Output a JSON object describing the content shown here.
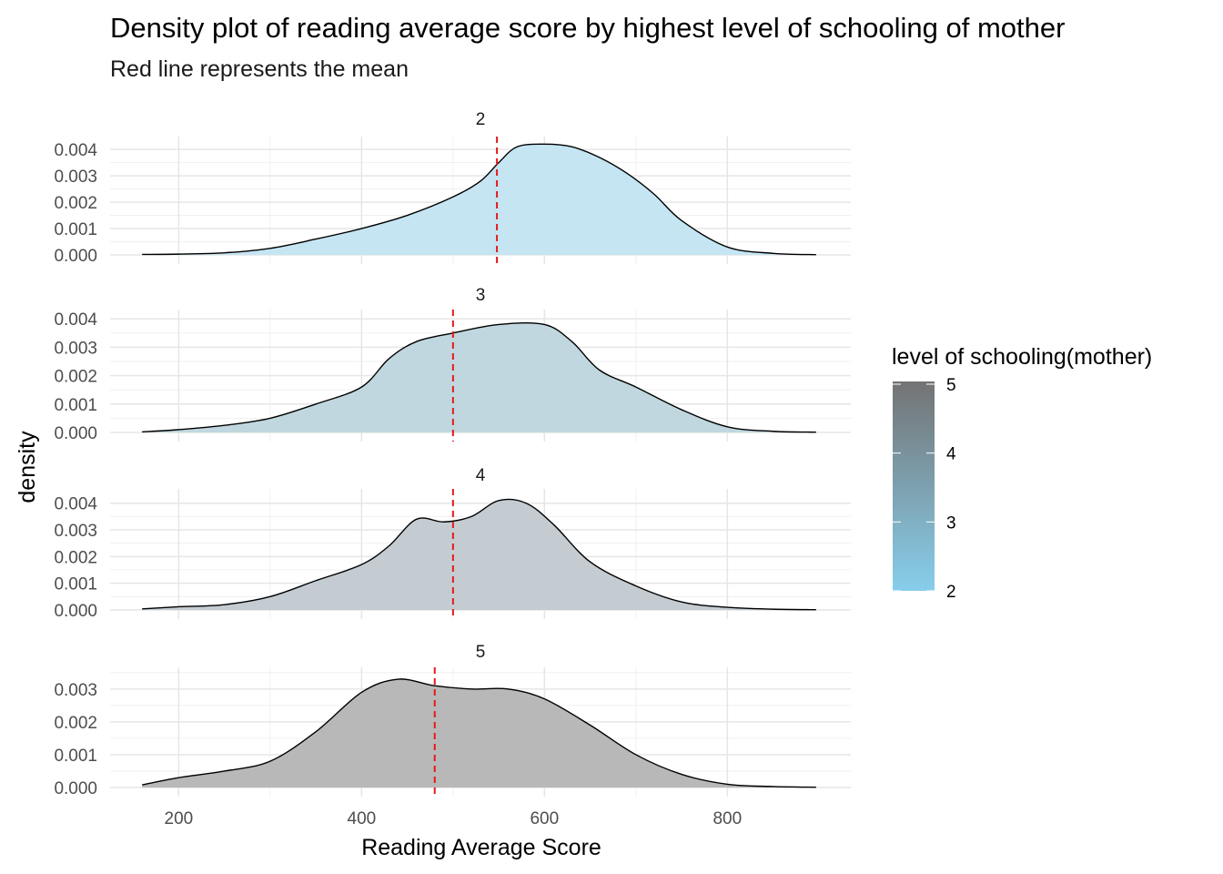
{
  "chart_data": {
    "type": "area",
    "title": "Density plot of reading average score by highest level of schooling of mother",
    "subtitle": "Red line represents the mean",
    "xlabel": "Reading Average Score",
    "ylabel": "density",
    "xlim": [
      125,
      935
    ],
    "x_ticks": [
      "200",
      "400",
      "600",
      "800"
    ],
    "x_tick_values": [
      200,
      400,
      600,
      800
    ],
    "grid": true,
    "mean_line_color": "#e41a1c",
    "legend": {
      "title": "level of schooling(mother)",
      "position": "right",
      "labels": [
        "5",
        "4",
        "3",
        "2"
      ],
      "values": [
        5,
        4,
        3,
        2
      ],
      "colors": [
        "#737373",
        "#87ceeb"
      ]
    },
    "facets": [
      {
        "label": "2",
        "fill": "#c5e5f3",
        "mean": 548,
        "ylim": [
          0,
          0.00435
        ],
        "y_ticks": [
          "0.000",
          "0.001",
          "0.002",
          "0.003",
          "0.004"
        ],
        "y_tick_values": [
          0,
          0.001,
          0.002,
          0.003,
          0.004
        ],
        "x": [
          160,
          200,
          250,
          300,
          350,
          400,
          450,
          500,
          530,
          550,
          570,
          600,
          630,
          660,
          690,
          720,
          750,
          800,
          850,
          897
        ],
        "y": [
          2e-05,
          3e-05,
          8e-05,
          0.00025,
          0.0006,
          0.001,
          0.0015,
          0.0022,
          0.0028,
          0.0035,
          0.0041,
          0.0042,
          0.0041,
          0.0037,
          0.0031,
          0.0023,
          0.0013,
          0.0003,
          6e-05,
          1e-05
        ]
      },
      {
        "label": "3",
        "fill": "#c0d7df",
        "mean": 500,
        "ylim": [
          0,
          0.0042
        ],
        "y_ticks": [
          "0.000",
          "0.001",
          "0.002",
          "0.003",
          "0.004"
        ],
        "y_tick_values": [
          0,
          0.001,
          0.002,
          0.003,
          0.004
        ],
        "x": [
          160,
          200,
          250,
          300,
          350,
          400,
          430,
          460,
          500,
          550,
          600,
          630,
          660,
          700,
          750,
          800,
          850,
          897
        ],
        "y": [
          2e-05,
          0.0001,
          0.00025,
          0.0005,
          0.001,
          0.0016,
          0.0026,
          0.0032,
          0.0035,
          0.0038,
          0.0038,
          0.0032,
          0.0022,
          0.0016,
          0.0008,
          0.0002,
          4e-05,
          1e-05
        ]
      },
      {
        "label": "4",
        "fill": "#c4ccd2",
        "mean": 500,
        "ylim": [
          0,
          0.0044
        ],
        "y_ticks": [
          "0.000",
          "0.001",
          "0.002",
          "0.003",
          "0.004"
        ],
        "y_tick_values": [
          0,
          0.001,
          0.002,
          0.003,
          0.004
        ],
        "x": [
          160,
          200,
          250,
          300,
          350,
          400,
          430,
          460,
          490,
          520,
          550,
          580,
          610,
          650,
          700,
          750,
          800,
          850,
          897
        ],
        "y": [
          4e-05,
          0.00012,
          0.0002,
          0.0005,
          0.0011,
          0.0017,
          0.0024,
          0.0034,
          0.0033,
          0.0035,
          0.0041,
          0.004,
          0.0032,
          0.0018,
          0.0009,
          0.0003,
          0.0001,
          3e-05,
          1e-05
        ]
      },
      {
        "label": "5",
        "fill": "#b8b8b8",
        "mean": 480,
        "ylim": [
          0,
          0.00355
        ],
        "y_ticks": [
          "0.000",
          "0.001",
          "0.002",
          "0.003"
        ],
        "y_tick_values": [
          0,
          0.001,
          0.002,
          0.003
        ],
        "x": [
          160,
          200,
          250,
          300,
          350,
          400,
          440,
          480,
          520,
          560,
          600,
          650,
          700,
          750,
          800,
          850,
          897
        ],
        "y": [
          8e-05,
          0.0003,
          0.0005,
          0.0008,
          0.0017,
          0.0029,
          0.0033,
          0.0031,
          0.003,
          0.003,
          0.0027,
          0.0019,
          0.001,
          0.0004,
          0.0001,
          3e-05,
          1e-05
        ]
      }
    ]
  }
}
